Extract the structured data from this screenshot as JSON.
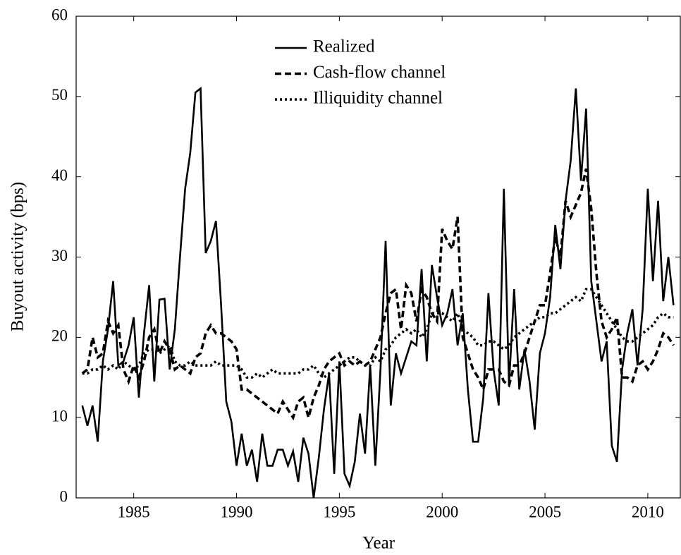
{
  "chart_data": {
    "type": "line",
    "xlabel": "Year",
    "ylabel": "Buyout activity (bps)",
    "xlim": [
      1982.2,
      2011.58
    ],
    "ylim": [
      0,
      60
    ],
    "xticks": [
      1985,
      1990,
      1995,
      2000,
      2005,
      2010
    ],
    "yticks": [
      0,
      10,
      20,
      30,
      40,
      50,
      60
    ],
    "grid": false,
    "legend": "top-center",
    "x": [
      1982.5,
      1982.75,
      1983,
      1983.25,
      1983.5,
      1983.75,
      1984,
      1984.25,
      1984.5,
      1984.75,
      1985,
      1985.25,
      1985.5,
      1985.75,
      1986,
      1986.25,
      1986.5,
      1986.75,
      1987,
      1987.25,
      1987.5,
      1987.75,
      1988,
      1988.25,
      1988.5,
      1988.75,
      1989,
      1989.25,
      1989.5,
      1989.75,
      1990,
      1990.25,
      1990.5,
      1990.75,
      1991,
      1991.25,
      1991.5,
      1991.75,
      1992,
      1992.25,
      1992.5,
      1992.75,
      1993,
      1993.25,
      1993.5,
      1993.75,
      1994,
      1994.25,
      1994.5,
      1994.75,
      1995,
      1995.25,
      1995.5,
      1995.75,
      1996,
      1996.25,
      1996.5,
      1996.75,
      1997,
      1997.25,
      1997.5,
      1997.75,
      1998,
      1998.25,
      1998.5,
      1998.75,
      1999,
      1999.25,
      1999.5,
      1999.75,
      2000,
      2000.25,
      2000.5,
      2000.75,
      2001,
      2001.25,
      2001.5,
      2001.75,
      2002,
      2002.25,
      2002.5,
      2002.75,
      2003,
      2003.25,
      2003.5,
      2003.75,
      2004,
      2004.25,
      2004.5,
      2004.75,
      2005,
      2005.25,
      2005.5,
      2005.75,
      2006,
      2006.25,
      2006.5,
      2006.75,
      2007,
      2007.25,
      2007.5,
      2007.75,
      2008,
      2008.25,
      2008.5,
      2008.75,
      2009,
      2009.25,
      2009.5,
      2009.75,
      2010,
      2010.25,
      2010.5,
      2010.75,
      2011,
      2011.25
    ],
    "series": [
      {
        "name": "Realized",
        "color": "#000000",
        "style": "solid",
        "values": [
          11.5,
          9,
          11.5,
          7,
          17,
          21,
          27,
          16.5,
          17,
          19,
          22.5,
          12.5,
          20.5,
          26.5,
          14.5,
          24.7,
          24.8,
          16,
          21,
          30,
          38.5,
          43,
          50.5,
          51,
          30.5,
          32,
          34.5,
          24,
          12,
          9.5,
          4,
          8,
          4,
          6,
          2,
          8,
          4,
          4,
          6,
          6,
          4,
          5.8,
          2,
          7.5,
          5.5,
          0,
          5,
          11,
          15.5,
          3,
          17,
          3,
          1.5,
          4.5,
          10.5,
          5.5,
          16.5,
          4,
          16,
          32,
          11.5,
          18,
          15.5,
          17.5,
          19.5,
          19,
          28.5,
          17,
          29,
          25,
          21.5,
          23,
          26,
          19,
          23,
          13.5,
          7,
          7,
          12.5,
          25.5,
          16,
          11.5,
          38.5,
          14,
          26,
          13.5,
          18.5,
          14.5,
          8.5,
          18,
          20.5,
          25,
          34,
          28.5,
          37,
          42,
          51,
          39.5,
          48.5,
          27,
          22,
          17,
          19.5,
          6.5,
          4.5,
          16,
          20.5,
          23.5,
          16.5,
          23.5,
          38.5,
          27,
          37,
          24.5,
          30,
          24
        ]
      },
      {
        "name": "Cash-flow channel",
        "color": "#000000",
        "style": "dashed",
        "values": [
          15.5,
          16,
          20,
          17.5,
          18,
          22,
          20.5,
          21.5,
          16,
          14.5,
          16.5,
          15,
          17,
          20,
          21,
          18,
          19.5,
          18.5,
          16,
          16.5,
          16,
          15.5,
          17.5,
          18,
          20.5,
          21.5,
          20.5,
          20.5,
          20,
          19.5,
          18.5,
          13.5,
          13.5,
          13,
          12.5,
          12,
          11.5,
          11,
          10.5,
          12,
          11,
          10,
          12,
          12.5,
          10,
          12.5,
          14,
          16,
          17,
          17.5,
          18,
          16.5,
          17,
          16.5,
          17,
          16.5,
          17,
          18.5,
          20,
          23,
          25.5,
          26,
          21,
          26.5,
          25.5,
          22,
          26,
          25,
          23,
          22,
          33.5,
          32,
          31,
          35,
          20,
          18,
          16,
          15,
          13.5,
          16,
          16,
          16,
          14.5,
          14,
          16.5,
          16.5,
          18,
          20,
          22,
          24,
          24,
          28,
          32.5,
          30,
          37,
          35,
          36.5,
          38,
          41,
          36,
          28,
          22,
          20,
          21,
          22.5,
          15,
          15,
          14.5,
          16.5,
          17,
          16,
          17,
          18.5,
          20.5,
          20,
          19
        ]
      },
      {
        "name": "Illiquidity channel",
        "color": "#000000",
        "style": "dotted",
        "values": [
          15.5,
          15.5,
          16,
          16,
          16.5,
          16,
          16.5,
          16,
          17,
          16.5,
          16,
          16.5,
          18,
          18.5,
          18.5,
          18,
          18.5,
          19,
          17,
          16.5,
          16.5,
          17,
          16.5,
          16.5,
          16.5,
          16.5,
          17,
          16.5,
          16.5,
          16.5,
          16.5,
          16,
          15,
          15,
          15.5,
          15,
          15.5,
          16,
          15.5,
          15.5,
          15.5,
          15.5,
          15.5,
          16,
          16,
          16.5,
          15.5,
          15,
          15.5,
          16,
          16.5,
          17,
          17.5,
          17.5,
          17,
          16.5,
          16.5,
          17.5,
          17,
          18.5,
          19,
          20,
          20.5,
          21,
          20.5,
          21,
          20,
          21,
          23,
          23,
          23,
          22.5,
          22,
          23,
          21,
          20.5,
          20,
          19,
          19,
          19.5,
          19.5,
          19,
          18.5,
          19,
          20,
          20.5,
          21,
          21.5,
          22,
          22.5,
          22.5,
          23,
          23,
          23.5,
          24,
          24.5,
          25,
          24.5,
          26,
          26,
          25,
          24,
          23,
          22,
          21,
          20,
          19.5,
          19.5,
          20,
          20.5,
          21,
          21.5,
          22.5,
          23,
          22.5,
          22.5
        ]
      }
    ]
  }
}
